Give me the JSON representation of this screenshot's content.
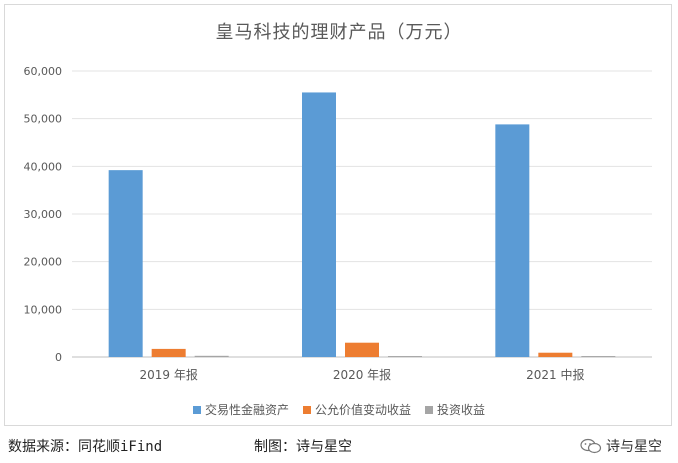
{
  "chart_data": {
    "type": "bar",
    "title": "皇马科技的理财产品（万元）",
    "categories": [
      "2019 年报",
      "2020 年报",
      "2021 中报"
    ],
    "series": [
      {
        "name": "交易性金融资产",
        "color": "#5b9bd5",
        "values": [
          39200,
          55500,
          48800
        ]
      },
      {
        "name": "公允价值变动收益",
        "color": "#ed7d31",
        "values": [
          1700,
          3000,
          900
        ]
      },
      {
        "name": "投资收益",
        "color": "#a5a5a5",
        "values": [
          250,
          200,
          200
        ]
      }
    ],
    "ylim": [
      0,
      60000
    ],
    "yticks": [
      "0",
      "10,000",
      "20,000",
      "30,000",
      "40,000",
      "50,000",
      "60,000"
    ],
    "grid": true,
    "legend": "bottom"
  },
  "footer": {
    "source": "数据来源：同花顺iFind",
    "made_by": "制图：诗与星空",
    "brand": "诗与星空"
  }
}
